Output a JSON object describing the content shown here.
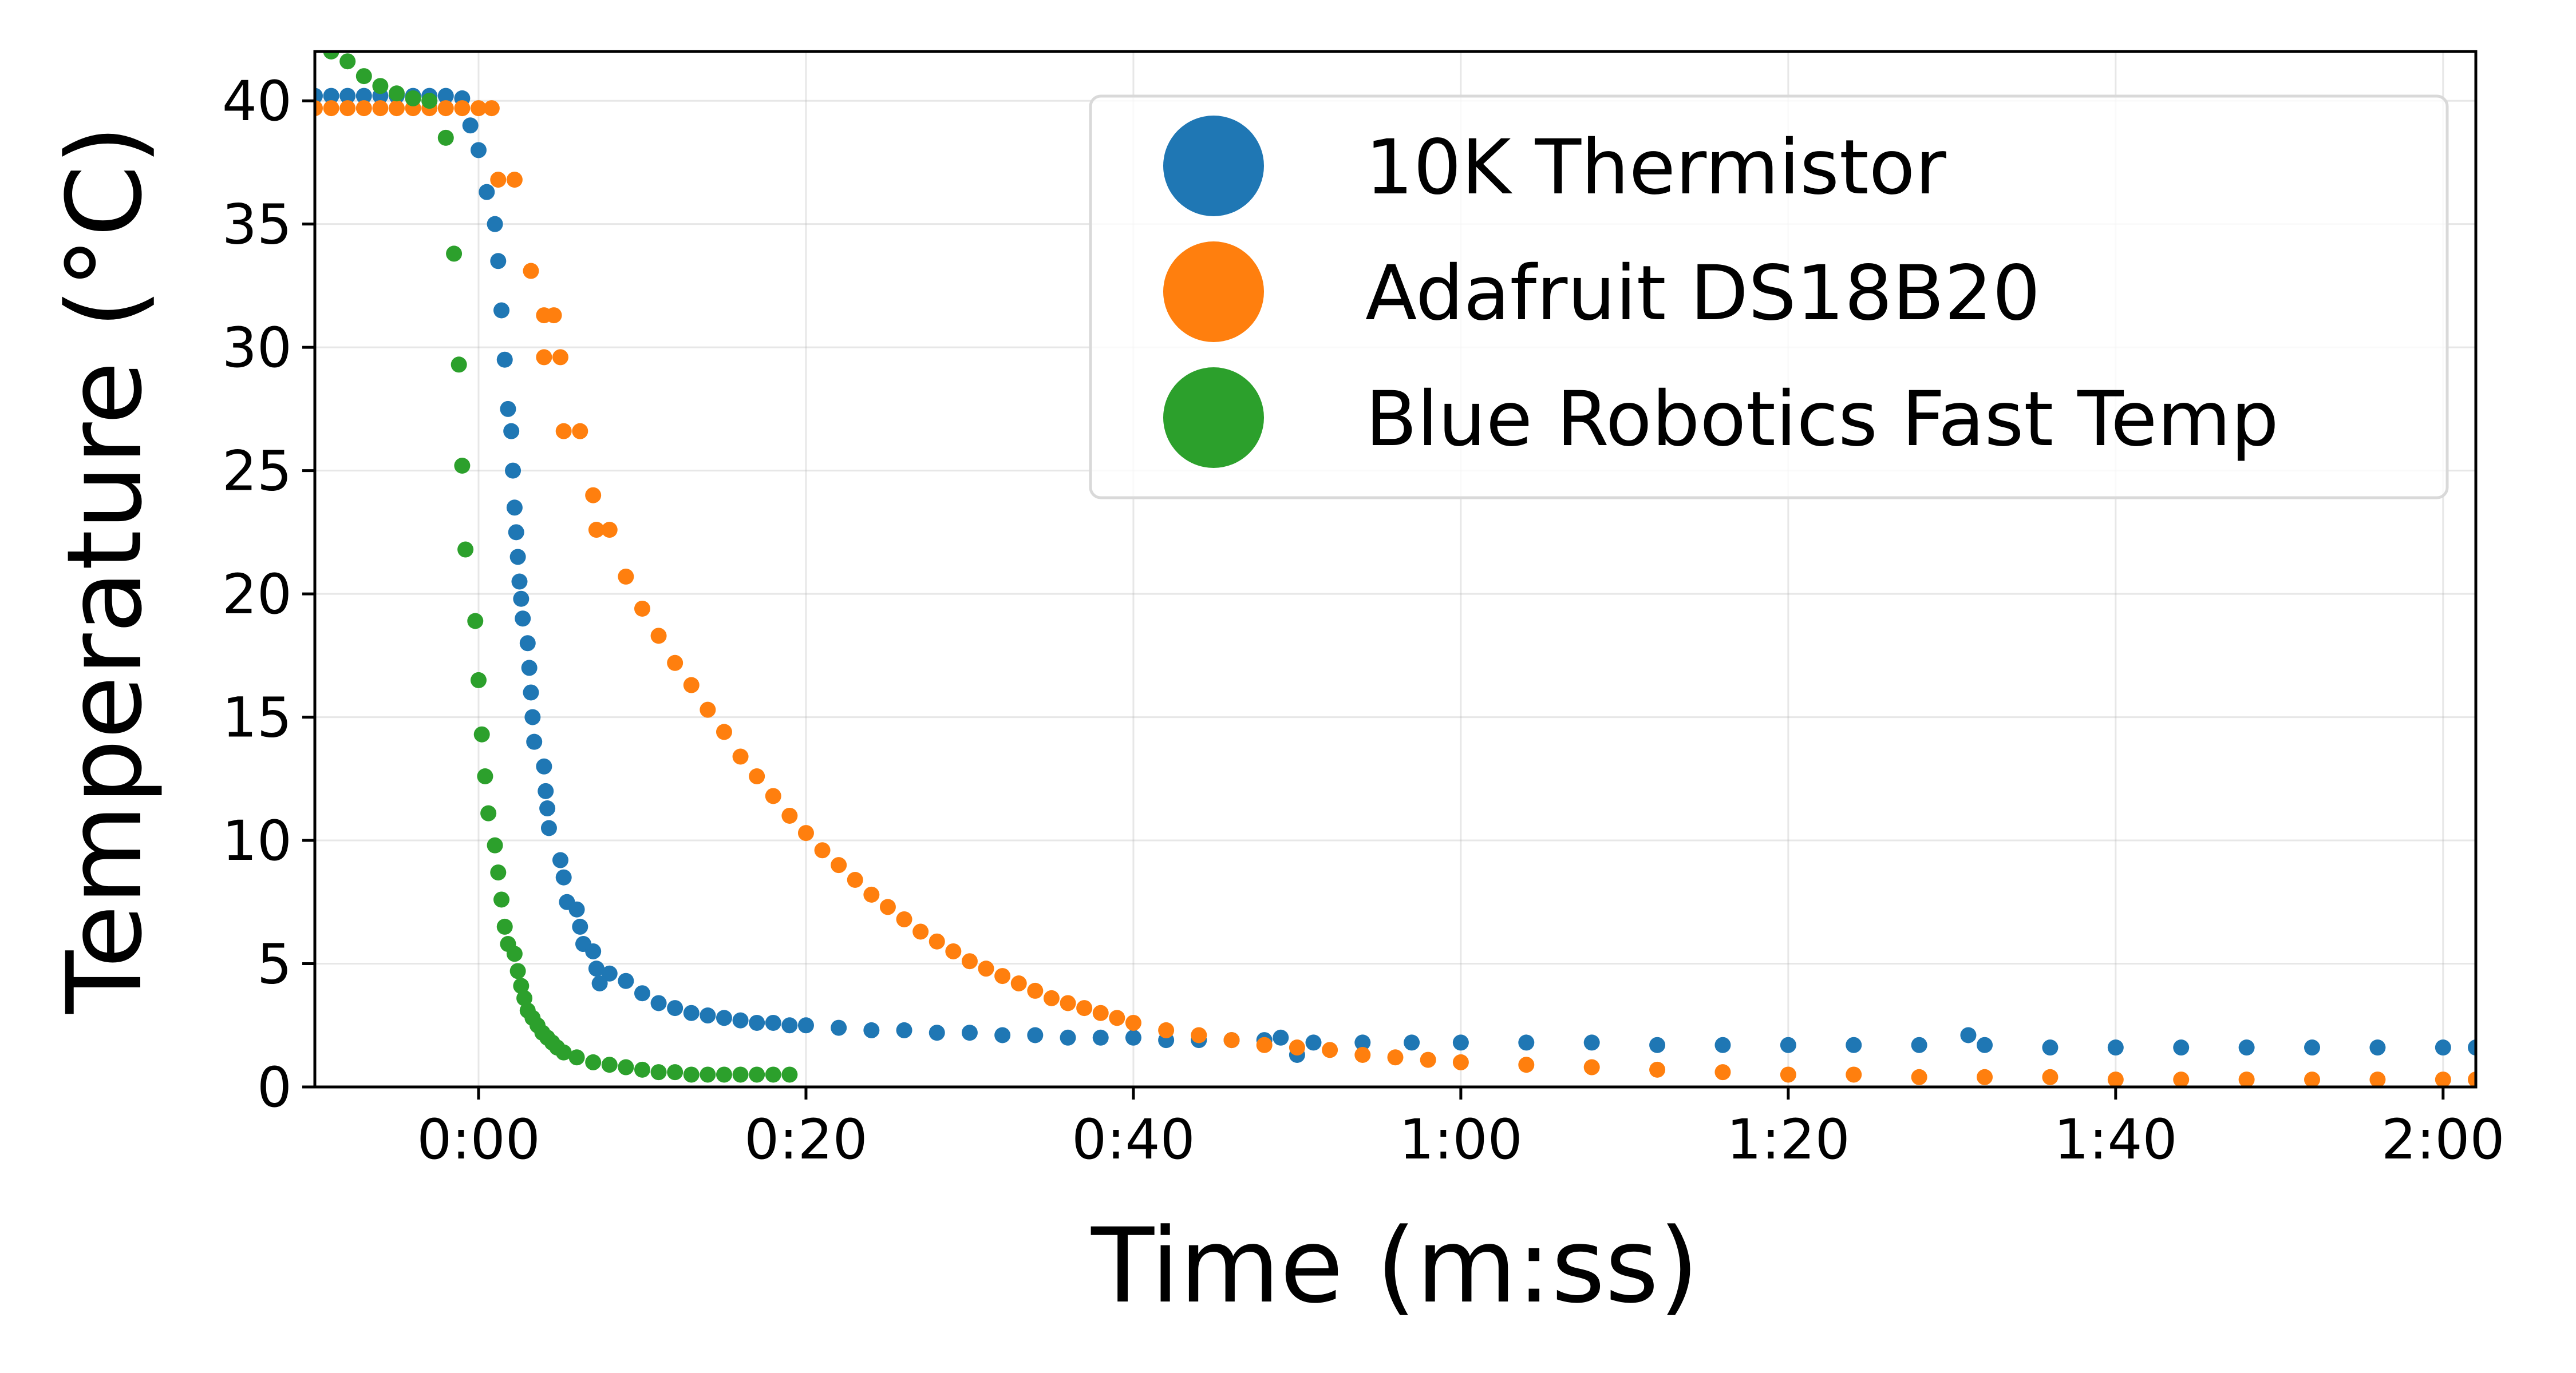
{
  "chart_data": {
    "type": "scatter",
    "title": "",
    "xlabel": "Time (m:ss)",
    "ylabel": "Temperature (°C)",
    "x_unit": "seconds",
    "xlim": [
      -10,
      122
    ],
    "ylim": [
      0,
      42
    ],
    "x_ticks": [
      0,
      20,
      40,
      60,
      80,
      100,
      120
    ],
    "x_tick_labels": [
      "0:00",
      "0:20",
      "0:40",
      "1:00",
      "1:20",
      "1:40",
      "2:00"
    ],
    "y_ticks": [
      0,
      5,
      10,
      15,
      20,
      25,
      30,
      35,
      40
    ],
    "y_tick_labels": [
      "0",
      "5",
      "10",
      "15",
      "20",
      "25",
      "30",
      "35",
      "40"
    ],
    "grid": true,
    "legend_position": "top-right",
    "series": [
      {
        "name": "10K Thermistor",
        "color": "#1f77b4",
        "points": [
          [
            -10,
            40.2
          ],
          [
            -9,
            40.2
          ],
          [
            -8,
            40.2
          ],
          [
            -7,
            40.2
          ],
          [
            -6,
            40.2
          ],
          [
            -5,
            40.2
          ],
          [
            -4,
            40.2
          ],
          [
            -3,
            40.2
          ],
          [
            -2,
            40.2
          ],
          [
            -1,
            40.1
          ],
          [
            -0.5,
            39.0
          ],
          [
            0,
            38.0
          ],
          [
            0.5,
            36.3
          ],
          [
            1,
            35.0
          ],
          [
            1.2,
            33.5
          ],
          [
            1.4,
            31.5
          ],
          [
            1.6,
            29.5
          ],
          [
            1.8,
            27.5
          ],
          [
            2,
            26.6
          ],
          [
            2.1,
            25.0
          ],
          [
            2.2,
            23.5
          ],
          [
            2.3,
            22.5
          ],
          [
            2.4,
            21.5
          ],
          [
            2.5,
            20.5
          ],
          [
            2.6,
            19.8
          ],
          [
            2.7,
            19.0
          ],
          [
            3,
            18.0
          ],
          [
            3.1,
            17.0
          ],
          [
            3.2,
            16.0
          ],
          [
            3.3,
            15.0
          ],
          [
            3.4,
            14.0
          ],
          [
            4,
            13.0
          ],
          [
            4.1,
            12.0
          ],
          [
            4.2,
            11.3
          ],
          [
            4.3,
            10.5
          ],
          [
            5,
            9.2
          ],
          [
            5.2,
            8.5
          ],
          [
            5.4,
            7.5
          ],
          [
            6,
            7.2
          ],
          [
            6.2,
            6.5
          ],
          [
            6.4,
            5.8
          ],
          [
            7,
            5.5
          ],
          [
            7.2,
            4.8
          ],
          [
            7.4,
            4.2
          ],
          [
            8,
            4.6
          ],
          [
            9,
            4.3
          ],
          [
            10,
            3.8
          ],
          [
            11,
            3.4
          ],
          [
            12,
            3.2
          ],
          [
            13,
            3.0
          ],
          [
            14,
            2.9
          ],
          [
            15,
            2.8
          ],
          [
            16,
            2.7
          ],
          [
            17,
            2.6
          ],
          [
            18,
            2.6
          ],
          [
            19,
            2.5
          ],
          [
            20,
            2.5
          ],
          [
            22,
            2.4
          ],
          [
            24,
            2.3
          ],
          [
            26,
            2.3
          ],
          [
            28,
            2.2
          ],
          [
            30,
            2.2
          ],
          [
            32,
            2.1
          ],
          [
            34,
            2.1
          ],
          [
            36,
            2.0
          ],
          [
            38,
            2.0
          ],
          [
            40,
            2.0
          ],
          [
            42,
            1.9
          ],
          [
            44,
            1.9
          ],
          [
            46,
            1.9
          ],
          [
            48,
            1.9
          ],
          [
            49,
            2.0
          ],
          [
            50,
            1.3
          ],
          [
            51,
            1.8
          ],
          [
            54,
            1.8
          ],
          [
            57,
            1.8
          ],
          [
            60,
            1.8
          ],
          [
            64,
            1.8
          ],
          [
            68,
            1.8
          ],
          [
            72,
            1.7
          ],
          [
            76,
            1.7
          ],
          [
            80,
            1.7
          ],
          [
            84,
            1.7
          ],
          [
            88,
            1.7
          ],
          [
            91,
            2.1
          ],
          [
            92,
            1.7
          ],
          [
            96,
            1.6
          ],
          [
            100,
            1.6
          ],
          [
            104,
            1.6
          ],
          [
            108,
            1.6
          ],
          [
            112,
            1.6
          ],
          [
            116,
            1.6
          ],
          [
            120,
            1.6
          ],
          [
            122,
            1.6
          ]
        ]
      },
      {
        "name": "Adafruit DS18B20",
        "color": "#ff7f0e",
        "points": [
          [
            -10,
            39.7
          ],
          [
            -9,
            39.7
          ],
          [
            -8,
            39.7
          ],
          [
            -7,
            39.7
          ],
          [
            -6,
            39.7
          ],
          [
            -5,
            39.7
          ],
          [
            -4,
            39.7
          ],
          [
            -3,
            39.7
          ],
          [
            -2,
            39.7
          ],
          [
            -1,
            39.7
          ],
          [
            0,
            39.7
          ],
          [
            0.8,
            39.7
          ],
          [
            1.2,
            36.8
          ],
          [
            2.2,
            36.8
          ],
          [
            3.2,
            33.1
          ],
          [
            4,
            31.3
          ],
          [
            4.6,
            31.3
          ],
          [
            4,
            29.6
          ],
          [
            5,
            29.6
          ],
          [
            5.2,
            26.6
          ],
          [
            6.2,
            26.6
          ],
          [
            7,
            24.0
          ],
          [
            7.2,
            22.6
          ],
          [
            8,
            22.6
          ],
          [
            9,
            20.7
          ],
          [
            10,
            19.4
          ],
          [
            11,
            18.3
          ],
          [
            12,
            17.2
          ],
          [
            13,
            16.3
          ],
          [
            14,
            15.3
          ],
          [
            15,
            14.4
          ],
          [
            16,
            13.4
          ],
          [
            17,
            12.6
          ],
          [
            18,
            11.8
          ],
          [
            19,
            11.0
          ],
          [
            20,
            10.3
          ],
          [
            21,
            9.6
          ],
          [
            22,
            9.0
          ],
          [
            23,
            8.4
          ],
          [
            24,
            7.8
          ],
          [
            25,
            7.3
          ],
          [
            26,
            6.8
          ],
          [
            27,
            6.3
          ],
          [
            28,
            5.9
          ],
          [
            29,
            5.5
          ],
          [
            30,
            5.1
          ],
          [
            31,
            4.8
          ],
          [
            32,
            4.5
          ],
          [
            33,
            4.2
          ],
          [
            34,
            3.9
          ],
          [
            35,
            3.6
          ],
          [
            36,
            3.4
          ],
          [
            37,
            3.2
          ],
          [
            38,
            3.0
          ],
          [
            39,
            2.8
          ],
          [
            40,
            2.6
          ],
          [
            42,
            2.3
          ],
          [
            44,
            2.1
          ],
          [
            46,
            1.9
          ],
          [
            48,
            1.7
          ],
          [
            50,
            1.6
          ],
          [
            52,
            1.5
          ],
          [
            54,
            1.3
          ],
          [
            56,
            1.2
          ],
          [
            58,
            1.1
          ],
          [
            60,
            1.0
          ],
          [
            64,
            0.9
          ],
          [
            68,
            0.8
          ],
          [
            72,
            0.7
          ],
          [
            76,
            0.6
          ],
          [
            80,
            0.5
          ],
          [
            84,
            0.5
          ],
          [
            88,
            0.4
          ],
          [
            92,
            0.4
          ],
          [
            96,
            0.4
          ],
          [
            100,
            0.3
          ],
          [
            104,
            0.3
          ],
          [
            108,
            0.3
          ],
          [
            112,
            0.3
          ],
          [
            116,
            0.3
          ],
          [
            120,
            0.3
          ],
          [
            122,
            0.3
          ]
        ]
      },
      {
        "name": "Blue Robotics Fast Temp",
        "color": "#2ca02c",
        "points": [
          [
            -9,
            42.0
          ],
          [
            -8,
            41.6
          ],
          [
            -7,
            41.0
          ],
          [
            -6,
            40.6
          ],
          [
            -5,
            40.3
          ],
          [
            -4,
            40.1
          ],
          [
            -3,
            40.0
          ],
          [
            -2,
            38.5
          ],
          [
            -1.5,
            33.8
          ],
          [
            -1.2,
            29.3
          ],
          [
            -1,
            25.2
          ],
          [
            -0.8,
            21.8
          ],
          [
            -0.2,
            18.9
          ],
          [
            0,
            16.5
          ],
          [
            0.2,
            14.3
          ],
          [
            0.4,
            12.6
          ],
          [
            0.6,
            11.1
          ],
          [
            1,
            9.8
          ],
          [
            1.2,
            8.7
          ],
          [
            1.4,
            7.6
          ],
          [
            1.6,
            6.5
          ],
          [
            1.8,
            5.8
          ],
          [
            2.2,
            5.4
          ],
          [
            2.4,
            4.7
          ],
          [
            2.6,
            4.1
          ],
          [
            2.8,
            3.6
          ],
          [
            3,
            3.1
          ],
          [
            3.3,
            2.8
          ],
          [
            3.6,
            2.5
          ],
          [
            3.9,
            2.2
          ],
          [
            4.2,
            2.0
          ],
          [
            4.5,
            1.8
          ],
          [
            4.8,
            1.6
          ],
          [
            5.2,
            1.4
          ],
          [
            6,
            1.2
          ],
          [
            7,
            1.0
          ],
          [
            8,
            0.9
          ],
          [
            9,
            0.8
          ],
          [
            10,
            0.7
          ],
          [
            11,
            0.6
          ],
          [
            12,
            0.6
          ],
          [
            13,
            0.5
          ],
          [
            14,
            0.5
          ],
          [
            15,
            0.5
          ],
          [
            16,
            0.5
          ],
          [
            17,
            0.5
          ],
          [
            18,
            0.5
          ],
          [
            19,
            0.5
          ]
        ]
      }
    ]
  }
}
